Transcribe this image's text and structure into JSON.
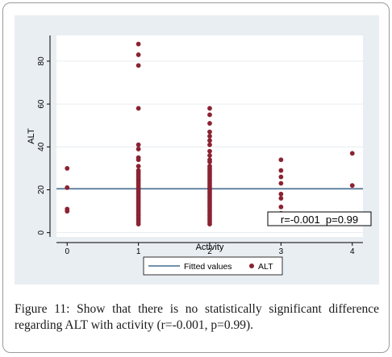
{
  "chart_data": {
    "type": "scatter",
    "title": "",
    "xlabel": "Activity",
    "ylabel": "ALT",
    "xlim": [
      -0.15,
      4.15
    ],
    "ylim": [
      -2,
      92
    ],
    "x_ticks": [
      0,
      1,
      2,
      3,
      4
    ],
    "y_ticks": [
      0,
      20,
      40,
      60,
      80
    ],
    "grid": "horizontal",
    "marker_color": "#8b2332",
    "fit_color": "#1f4e79",
    "series": [
      {
        "name": "ALT",
        "points": [
          [
            0,
            30
          ],
          [
            0,
            21
          ],
          [
            0,
            11
          ],
          [
            0,
            10
          ],
          [
            1,
            88
          ],
          [
            1,
            83
          ],
          [
            1,
            78
          ],
          [
            1,
            58
          ],
          [
            1,
            41
          ],
          [
            1,
            39
          ],
          [
            1,
            35
          ],
          [
            1,
            34
          ],
          [
            1,
            31
          ],
          [
            1,
            29
          ],
          [
            1,
            28
          ],
          [
            1,
            27
          ],
          [
            1,
            26
          ],
          [
            1,
            25
          ],
          [
            1,
            24
          ],
          [
            1,
            23
          ],
          [
            1,
            22
          ],
          [
            1,
            21
          ],
          [
            1,
            20
          ],
          [
            1,
            19
          ],
          [
            1,
            18
          ],
          [
            1,
            17
          ],
          [
            1,
            16
          ],
          [
            1,
            15
          ],
          [
            1,
            14
          ],
          [
            1,
            13
          ],
          [
            1,
            12
          ],
          [
            1,
            11
          ],
          [
            1,
            10
          ],
          [
            1,
            9
          ],
          [
            1,
            8
          ],
          [
            1,
            7
          ],
          [
            1,
            6
          ],
          [
            1,
            5
          ],
          [
            1,
            4
          ],
          [
            2,
            58
          ],
          [
            2,
            55
          ],
          [
            2,
            51
          ],
          [
            2,
            47
          ],
          [
            2,
            45
          ],
          [
            2,
            43
          ],
          [
            2,
            41
          ],
          [
            2,
            38
          ],
          [
            2,
            36
          ],
          [
            2,
            34
          ],
          [
            2,
            33
          ],
          [
            2,
            31
          ],
          [
            2,
            30
          ],
          [
            2,
            29
          ],
          [
            2,
            28
          ],
          [
            2,
            27
          ],
          [
            2,
            26
          ],
          [
            2,
            25
          ],
          [
            2,
            24
          ],
          [
            2,
            23
          ],
          [
            2,
            22
          ],
          [
            2,
            21
          ],
          [
            2,
            20
          ],
          [
            2,
            19
          ],
          [
            2,
            18
          ],
          [
            2,
            17
          ],
          [
            2,
            16
          ],
          [
            2,
            15
          ],
          [
            2,
            14
          ],
          [
            2,
            13
          ],
          [
            2,
            12
          ],
          [
            2,
            11
          ],
          [
            2,
            10
          ],
          [
            2,
            9
          ],
          [
            2,
            8
          ],
          [
            2,
            7
          ],
          [
            2,
            6
          ],
          [
            2,
            5
          ],
          [
            2,
            4
          ],
          [
            3,
            34
          ],
          [
            3,
            29
          ],
          [
            3,
            26
          ],
          [
            3,
            23
          ],
          [
            3,
            18
          ],
          [
            3,
            16
          ],
          [
            3,
            12
          ],
          [
            3,
            9
          ],
          [
            3,
            6
          ],
          [
            4,
            37
          ],
          [
            4,
            22
          ]
        ]
      },
      {
        "name": "Fitted values",
        "type": "line",
        "x": [
          -0.15,
          4.15
        ],
        "y": [
          20.5,
          20.5
        ]
      }
    ],
    "annotation": "r=-0.001  p=0.99",
    "legend": {
      "position": "bottom",
      "items": [
        "Fitted values",
        "ALT"
      ]
    }
  },
  "caption": {
    "label": "Figure 11:",
    "text": " Show that there is no statistically significant difference regarding ALT with activity (r=-0.001, p=0.99)."
  }
}
